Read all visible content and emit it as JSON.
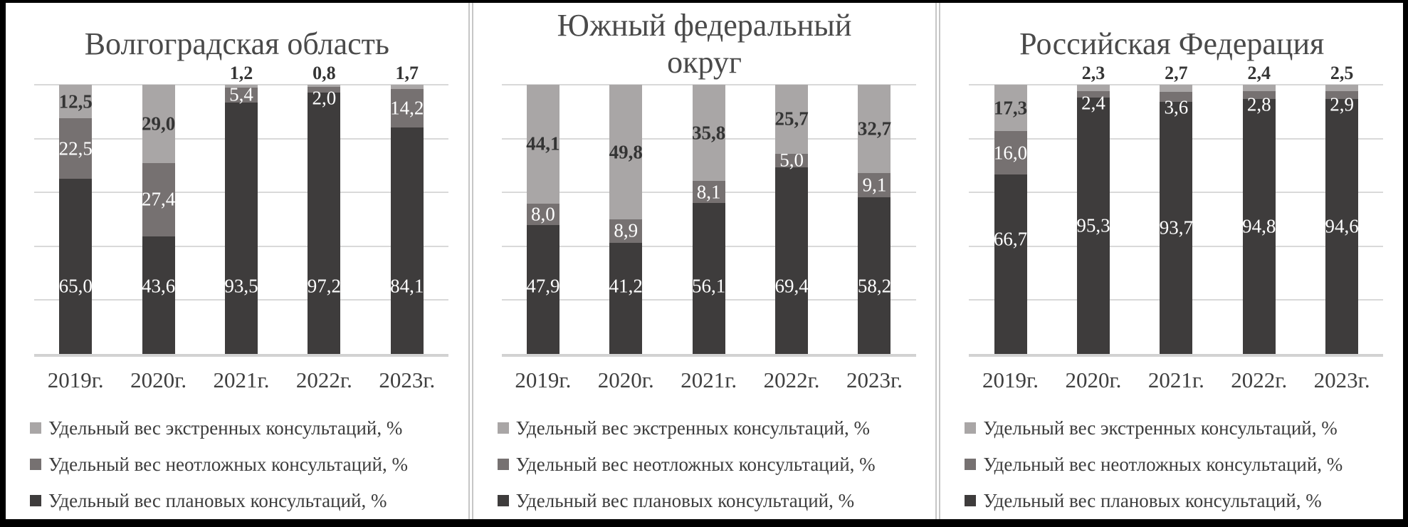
{
  "legend": [
    {
      "key": "emergency",
      "label": "Удельный вес экстренных консультаций, %",
      "color": "#a9a6a6"
    },
    {
      "key": "urgent",
      "label": "Удельный вес неотложных консультаций, %",
      "color": "#767171"
    },
    {
      "key": "planned",
      "label": "Удельный вес плановых консультаций, %",
      "color": "#3e3c3c"
    }
  ],
  "colors": {
    "planned": "#3e3c3c",
    "urgent": "#767171",
    "emergency": "#a9a6a6",
    "gridline": "#d9d9d9",
    "axis_line": "#d2d2d2",
    "title_text": "#4a4a4a",
    "label_dark_text": "#343434",
    "label_white_text": "#ffffff"
  },
  "chart_data": [
    {
      "type": "bar",
      "stacked": true,
      "title": "Волгоградская область",
      "title_lines": [
        "Волгоградская область"
      ],
      "categories": [
        "2019г.",
        "2020г.",
        "2021г.",
        "2022г.",
        "2023г."
      ],
      "ylim": [
        0,
        100
      ],
      "gridlines_pct": [
        0,
        20,
        40,
        60,
        80,
        100
      ],
      "legend_position": "bottom",
      "planned_label_mode": "base",
      "series": [
        {
          "key": "planned",
          "name": "Удельный вес плановых консультаций, %",
          "color": "#3e3c3c",
          "values": [
            65.0,
            43.6,
            93.5,
            97.2,
            84.1
          ],
          "labels": [
            "65,0",
            "43,6",
            "93,5",
            "97,2",
            "84,1"
          ]
        },
        {
          "key": "urgent",
          "name": "Удельный вес неотложных консультаций, %",
          "color": "#767171",
          "values": [
            22.5,
            27.4,
            5.4,
            2.0,
            14.2
          ],
          "labels": [
            "22,5",
            "27,4",
            "5,4",
            "2,0",
            "14,2"
          ]
        },
        {
          "key": "emergency",
          "name": "Удельный вес экстренных консультаций, %",
          "color": "#a9a6a6",
          "values": [
            12.5,
            29.0,
            1.2,
            0.8,
            1.7
          ],
          "labels": [
            "12,5",
            "29,0",
            "1,2",
            "0,8",
            "1,7"
          ]
        }
      ]
    },
    {
      "type": "bar",
      "stacked": true,
      "title": "Южный федеральный округ",
      "title_lines": [
        "Южный федеральный",
        "округ"
      ],
      "categories": [
        "2019г.",
        "2020г.",
        "2021г.",
        "2022г.",
        "2023г."
      ],
      "ylim": [
        0,
        100
      ],
      "gridlines_pct": [
        0,
        20,
        40,
        60,
        80,
        100
      ],
      "legend_position": "bottom",
      "planned_label_mode": "base",
      "series": [
        {
          "key": "planned",
          "name": "Удельный вес плановых консультаций, %",
          "color": "#3e3c3c",
          "values": [
            47.9,
            41.2,
            56.1,
            69.4,
            58.2
          ],
          "labels": [
            "47,9",
            "41,2",
            "56,1",
            "69,4",
            "58,2"
          ]
        },
        {
          "key": "urgent",
          "name": "Удельный вес неотложных консультаций, %",
          "color": "#767171",
          "values": [
            8.0,
            8.9,
            8.1,
            5.0,
            9.1
          ],
          "labels": [
            "8,0",
            "8,9",
            "8,1",
            "5,0",
            "9,1"
          ]
        },
        {
          "key": "emergency",
          "name": "Удельный вес экстренных консультаций, %",
          "color": "#a9a6a6",
          "values": [
            44.1,
            49.8,
            35.8,
            25.7,
            32.7
          ],
          "labels": [
            "44,1",
            "49,8",
            "35,8",
            "25,7",
            "32,7"
          ]
        }
      ]
    },
    {
      "type": "bar",
      "stacked": true,
      "title": "Российская Федерация",
      "title_lines": [
        "Российская Федерация"
      ],
      "categories": [
        "2019г.",
        "2020г.",
        "2021г.",
        "2022г.",
        "2023г."
      ],
      "ylim": [
        0,
        100
      ],
      "gridlines_pct": [
        0,
        20,
        40,
        60,
        80,
        100
      ],
      "legend_position": "bottom",
      "planned_label_mode": "center",
      "series": [
        {
          "key": "planned",
          "name": "Удельный вес плановых консультаций, %",
          "color": "#3e3c3c",
          "values": [
            66.7,
            95.3,
            93.7,
            94.8,
            94.6
          ],
          "labels": [
            "66,7",
            "95,3",
            "93,7",
            "94,8",
            "94,6"
          ],
          "label_ly": [
            161,
            null,
            null,
            null,
            null
          ]
        },
        {
          "key": "urgent",
          "name": "Удельный вес неотложных консультаций, %",
          "color": "#767171",
          "values": [
            16.0,
            2.4,
            3.6,
            2.8,
            2.9
          ],
          "labels": [
            "16,0",
            "2,4",
            "3,6",
            "2,8",
            "2,9"
          ]
        },
        {
          "key": "emergency",
          "name": "Удельный вес экстренных консультаций, %",
          "color": "#a9a6a6",
          "values": [
            17.3,
            2.3,
            2.7,
            2.4,
            2.5
          ],
          "labels": [
            "17,3",
            "2,3",
            "2,7",
            "2,4",
            "2,5"
          ]
        }
      ]
    }
  ]
}
